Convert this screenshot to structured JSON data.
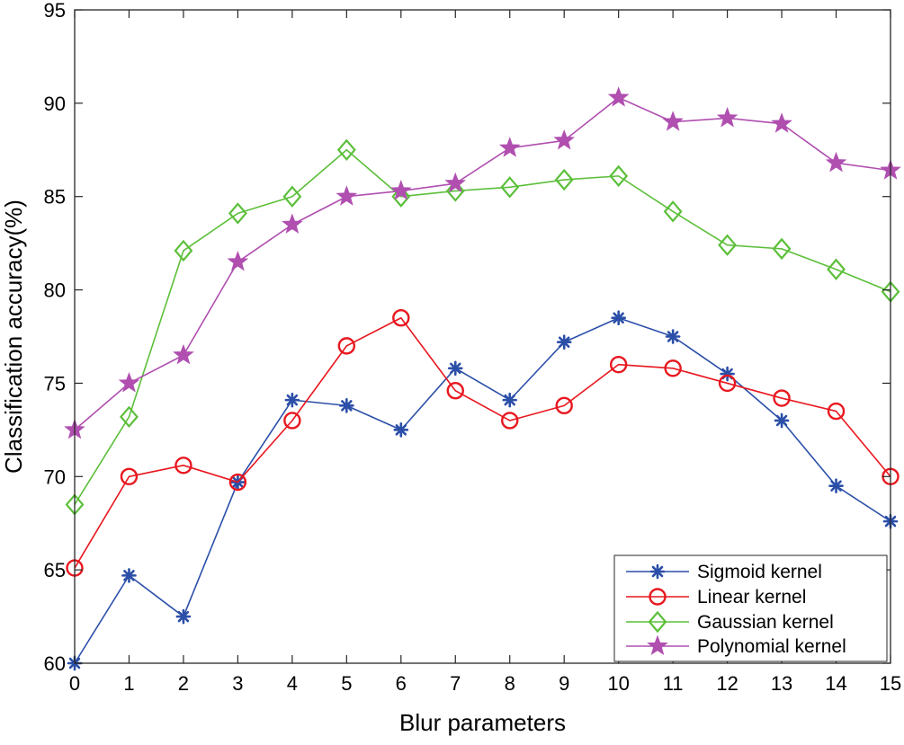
{
  "chart_data": {
    "type": "line",
    "title": "",
    "xlabel": "Blur parameters",
    "ylabel": "Classification accuracy(%)",
    "x": [
      0,
      1,
      2,
      3,
      4,
      5,
      6,
      7,
      8,
      9,
      10,
      11,
      12,
      13,
      14,
      15
    ],
    "xlim": [
      0,
      15
    ],
    "ylim": [
      60,
      95
    ],
    "xticks": [
      "0",
      "1",
      "2",
      "3",
      "4",
      "5",
      "6",
      "7",
      "8",
      "9",
      "10",
      "11",
      "12",
      "13",
      "14",
      "15"
    ],
    "yticks": [
      "60",
      "65",
      "70",
      "75",
      "80",
      "85",
      "90",
      "95"
    ],
    "grid": false,
    "legend_position": "bottom-right",
    "series": [
      {
        "name": "Sigmoid kernel",
        "color": "#2b4fa8",
        "marker": "asterisk",
        "values": [
          60.0,
          64.7,
          62.5,
          69.7,
          74.1,
          73.8,
          72.5,
          75.8,
          74.1,
          77.2,
          78.5,
          77.5,
          75.5,
          73.0,
          69.5,
          67.6
        ]
      },
      {
        "name": "Linear kernel",
        "color": "#e8171f",
        "marker": "circle",
        "values": [
          65.1,
          70.0,
          70.6,
          69.7,
          73.0,
          77.0,
          78.5,
          74.6,
          73.0,
          73.8,
          76.0,
          75.8,
          75.0,
          74.2,
          73.5,
          70.0
        ]
      },
      {
        "name": "Gaussian kernel",
        "color": "#5cbf3a",
        "marker": "diamond",
        "values": [
          68.5,
          73.2,
          82.1,
          84.1,
          85.0,
          87.5,
          85.0,
          85.3,
          85.5,
          85.9,
          86.1,
          84.2,
          82.4,
          82.2,
          81.1,
          79.9
        ]
      },
      {
        "name": "Polynomial kernel",
        "color": "#b04fb0",
        "marker": "star",
        "values": [
          72.5,
          75.0,
          76.5,
          81.5,
          83.5,
          85.0,
          85.3,
          85.7,
          87.6,
          88.0,
          90.3,
          89.0,
          89.2,
          88.9,
          86.8,
          86.4
        ]
      }
    ]
  }
}
